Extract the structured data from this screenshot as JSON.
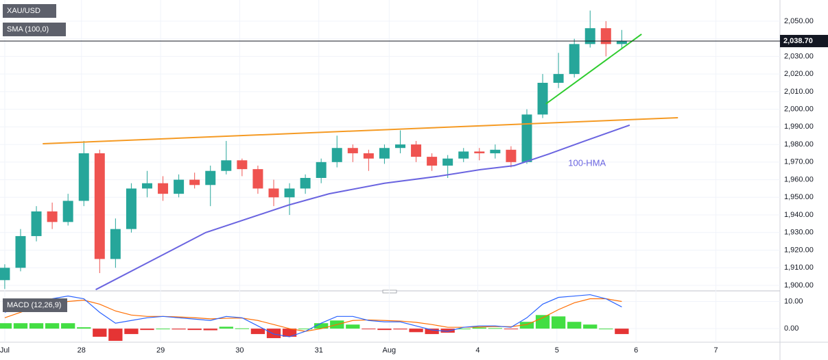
{
  "chart_data": [
    {
      "type": "candlestick",
      "symbol": "XAU/USD",
      "indicator": "SMA (100,0)",
      "hma_label": "100-HMA",
      "last_price": {
        "value": 2038.7,
        "label": "2,038.70"
      },
      "x": [
        0,
        0.2,
        0.4,
        0.6,
        0.8,
        1.0,
        1.2,
        1.4,
        1.6,
        1.8,
        2.0,
        2.2,
        2.4,
        2.6,
        2.8,
        3.0,
        3.2,
        3.4,
        3.6,
        3.8,
        4.0,
        4.2,
        4.4,
        4.6,
        4.8,
        5.0,
        5.2,
        5.4,
        5.6,
        5.8,
        6.0,
        6.2,
        6.4,
        6.6,
        6.8,
        7.0,
        7.2,
        7.4,
        7.6,
        7.8
      ],
      "open": [
        1903,
        1910,
        1928,
        1942,
        1936,
        1948,
        1975,
        1915,
        1932,
        1955,
        1958,
        1952,
        1960,
        1957,
        1965,
        1971,
        1966,
        1955,
        1950,
        1955,
        1961,
        1970,
        1978,
        1975,
        1972,
        1978,
        1980,
        1973,
        1968,
        1972,
        1976,
        1975,
        1977,
        1970,
        1997,
        2015,
        2020,
        2037,
        2046,
        2037
      ],
      "high": [
        1912,
        1932,
        1945,
        1947,
        1952,
        1982,
        1977,
        1938,
        1958,
        1965,
        1962,
        1963,
        1964,
        1968,
        1982,
        1972,
        1968,
        1960,
        1958,
        1963,
        1972,
        1985,
        1980,
        1977,
        1980,
        1988,
        1982,
        1975,
        1974,
        1978,
        1978,
        1980,
        1979,
        2000,
        2020,
        2032,
        2040,
        2056,
        2050,
        2045
      ],
      "low": [
        1898,
        1908,
        1925,
        1932,
        1934,
        1945,
        1907,
        1910,
        1930,
        1950,
        1948,
        1950,
        1955,
        1945,
        1963,
        1962,
        1952,
        1945,
        1940,
        1952,
        1958,
        1967,
        1970,
        1965,
        1969,
        1975,
        1970,
        1965,
        1961,
        1970,
        1971,
        1972,
        1967,
        1969,
        1995,
        2012,
        2018,
        2035,
        2030,
        2034
      ],
      "close": [
        1910,
        1928,
        1942,
        1936,
        1948,
        1975,
        1915,
        1932,
        1955,
        1958,
        1952,
        1960,
        1957,
        1965,
        1971,
        1966,
        1955,
        1950,
        1955,
        1961,
        1970,
        1978,
        1975,
        1972,
        1978,
        1980,
        1973,
        1968,
        1972,
        1976,
        1975,
        1977,
        1970,
        1997,
        2015,
        2020,
        2037,
        2046,
        2037,
        2038.7
      ],
      "up_color": "#26a69a",
      "down_color": "#ef5350",
      "overlays": [
        {
          "x": [
            1.15,
            2.54,
            3.58,
            4.1,
            4.8,
            5.49,
            6.01,
            6.44,
            6.88,
            7.31,
            7.9
          ],
          "values": [
            1897.6,
            1930,
            1945.5,
            1952,
            1958,
            1962,
            1965.7,
            1968,
            1974.6,
            1981.6,
            1991
          ],
          "color": "#6a64e0"
        },
        {
          "x": [
            0.48,
            8.51
          ],
          "values": [
            1980.4,
            1995.2
          ],
          "color": "#f59a23"
        },
        {
          "x": [
            6.84,
            8.05
          ],
          "values": [
            2003,
            2042.6
          ],
          "color": "#2ecc2e"
        }
      ],
      "xlim": [
        -0.06,
        9.8
      ],
      "ylim": [
        1896.9,
        2062.0
      ],
      "yticks": [
        {
          "value": 1900,
          "label": "1,900.00"
        },
        {
          "value": 1910,
          "label": "1,910.00"
        },
        {
          "value": 1920,
          "label": "1,920.00"
        },
        {
          "value": 1930,
          "label": "1,930.00"
        },
        {
          "value": 1940,
          "label": "1,940.00"
        },
        {
          "value": 1950,
          "label": "1,950.00"
        },
        {
          "value": 1960,
          "label": "1,960.00"
        },
        {
          "value": 1970,
          "label": "1,970.00"
        },
        {
          "value": 1980,
          "label": "1,980.00"
        },
        {
          "value": 1990,
          "label": "1,990.00"
        },
        {
          "value": 2000,
          "label": "2,000.00"
        },
        {
          "value": 2010,
          "label": "2,010.00"
        },
        {
          "value": 2020,
          "label": "2,020.00"
        },
        {
          "value": 2030,
          "label": "2,030.00"
        },
        {
          "value": 2040,
          "label": "2,040.00"
        },
        {
          "value": 2050,
          "label": "2,050.00"
        }
      ],
      "grid": true
    },
    {
      "type": "macd",
      "title": "MACD (12,26,9)",
      "x": [
        0,
        0.2,
        0.4,
        0.6,
        0.8,
        1.0,
        1.2,
        1.4,
        1.6,
        1.8,
        2.0,
        2.2,
        2.4,
        2.6,
        2.8,
        3.0,
        3.2,
        3.4,
        3.6,
        3.8,
        4.0,
        4.2,
        4.4,
        4.6,
        4.8,
        5.0,
        5.2,
        5.4,
        5.6,
        5.8,
        6.0,
        6.2,
        6.4,
        6.6,
        6.8,
        7.0,
        7.2,
        7.4,
        7.6,
        7.8
      ],
      "macd": [
        6,
        8,
        10,
        11,
        12,
        11,
        6,
        2,
        3,
        4,
        4.5,
        4,
        3.5,
        3,
        4.5,
        4,
        1,
        -2,
        -3,
        -1,
        2,
        4.5,
        4.5,
        3,
        2.5,
        2.5,
        1,
        -0.5,
        -1,
        0.5,
        1,
        1,
        0.5,
        4,
        9,
        11.5,
        12,
        12.5,
        11,
        8
      ],
      "signal": [
        4,
        6,
        8,
        9,
        10,
        10.5,
        9,
        6.5,
        5,
        4.5,
        4.5,
        4.3,
        4,
        3.6,
        3.8,
        3.9,
        3,
        1.5,
        0,
        -1,
        0,
        1.5,
        3,
        3.2,
        3,
        2.8,
        2.3,
        1.5,
        0.5,
        0.5,
        0.6,
        0.8,
        0.7,
        1.5,
        4,
        7,
        9.5,
        11,
        11,
        10
      ],
      "histogram": [
        2,
        2,
        2,
        2,
        2,
        0.5,
        -3,
        -4.5,
        -2,
        -0.5,
        0,
        -0.3,
        -0.5,
        -0.6,
        0.7,
        0.1,
        -2,
        -3.5,
        -3,
        0,
        2,
        3,
        1.5,
        -0.2,
        -0.5,
        -0.3,
        -1.3,
        -2,
        -1.5,
        0,
        0.4,
        0.2,
        -0.2,
        2.5,
        5,
        4.5,
        2.5,
        1.5,
        0,
        -2
      ],
      "macd_color": "#2962ff",
      "signal_color": "#ff6d00",
      "up_color": "#22d822",
      "down_color": "#e01010",
      "xlim": [
        -0.06,
        9.8
      ],
      "ylim": [
        -5,
        13.9
      ],
      "yticks": [
        {
          "value": 0,
          "label": "0.00"
        },
        {
          "value": 10,
          "label": "10.00"
        }
      ],
      "xticks": [
        {
          "value": 0,
          "label": "Jul"
        },
        {
          "value": 0.97,
          "label": "28"
        },
        {
          "value": 1.97,
          "label": "29"
        },
        {
          "value": 2.97,
          "label": "30"
        },
        {
          "value": 3.97,
          "label": "31"
        },
        {
          "value": 4.86,
          "label": "Aug"
        },
        {
          "value": 5.98,
          "label": "4"
        },
        {
          "value": 6.98,
          "label": "5"
        },
        {
          "value": 7.98,
          "label": "6"
        },
        {
          "value": 8.99,
          "label": "7"
        }
      ],
      "grid": true
    }
  ]
}
